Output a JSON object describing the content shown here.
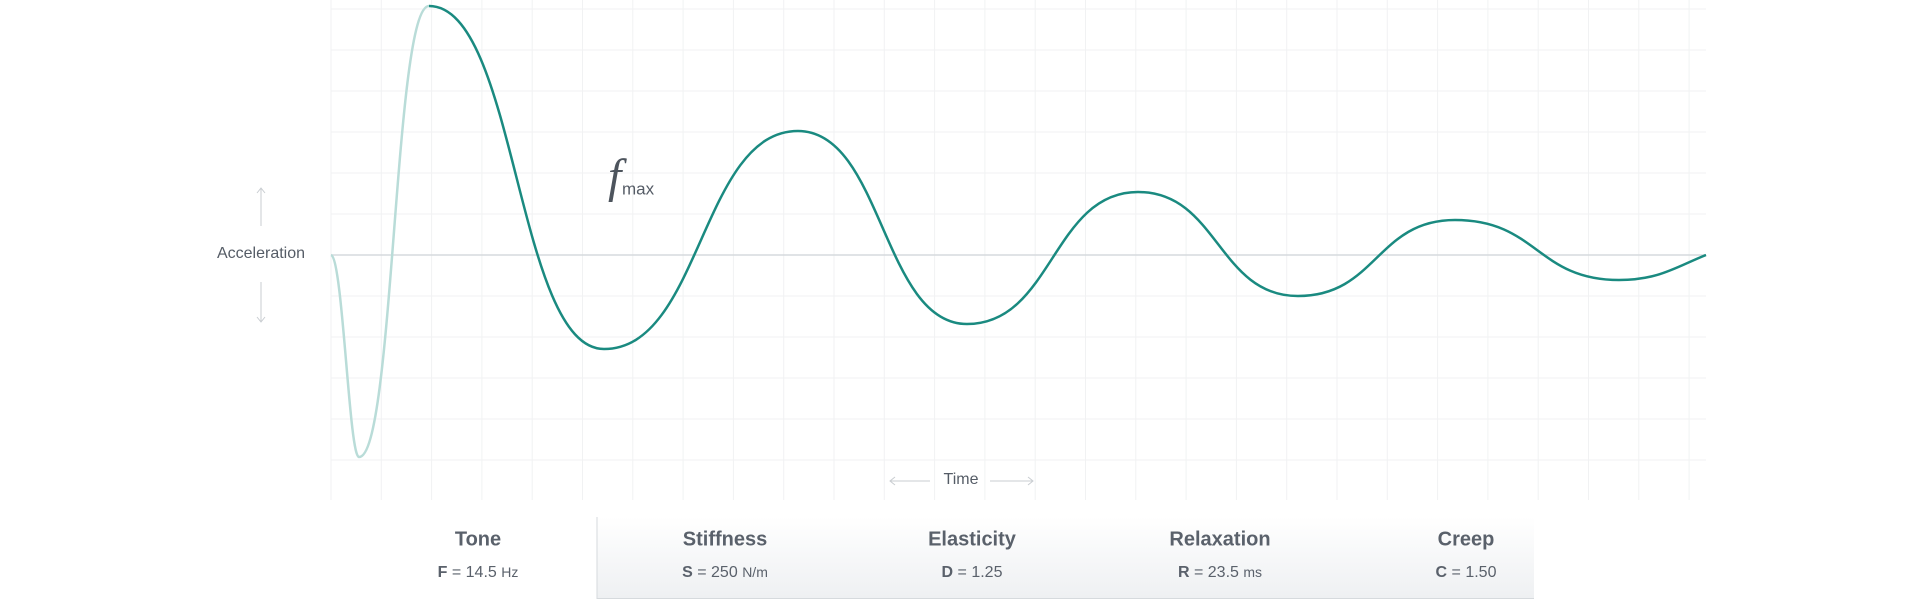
{
  "axes": {
    "y_label": "Acceleration",
    "x_label": "Time"
  },
  "annotation": {
    "symbol": "f",
    "subscript": "max"
  },
  "parameters": [
    {
      "name": "Tone",
      "symbol": "F",
      "value": "14.5",
      "unit": "Hz"
    },
    {
      "name": "Stiffness",
      "symbol": "S",
      "value": "250",
      "unit": "N/m"
    },
    {
      "name": "Elasticity",
      "symbol": "D",
      "value": "1.25"
    },
    {
      "name": "Relaxation",
      "symbol": "R",
      "value": "23.5",
      "unit": "ms"
    },
    {
      "name": "Creep",
      "symbol": "C",
      "value": "1.50"
    }
  ]
}
